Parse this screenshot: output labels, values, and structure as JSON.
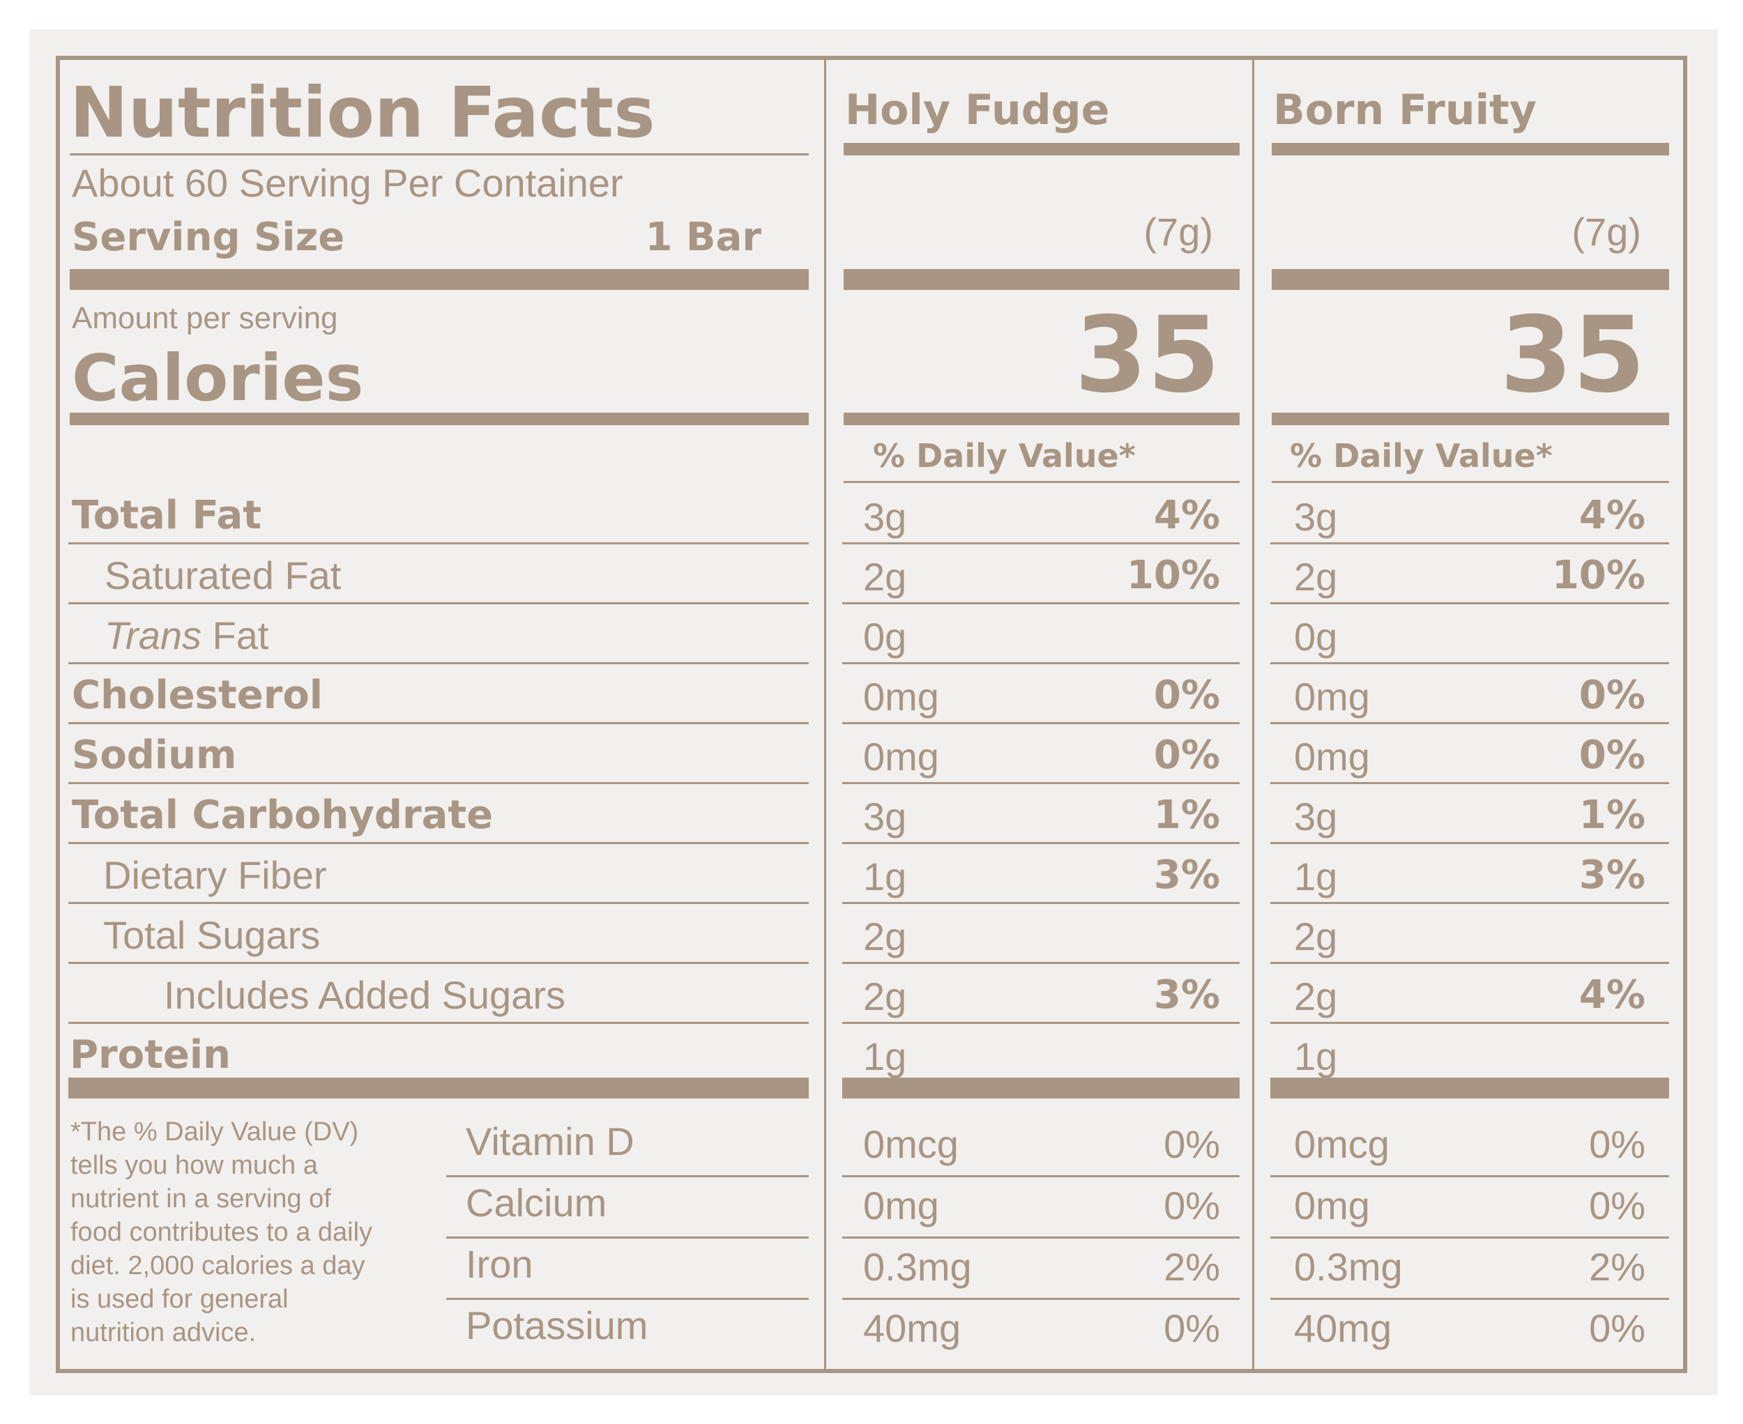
{
  "colors": {
    "ink": "#a89583",
    "background": "#f2f0ee"
  },
  "header": {
    "title": "Nutrition Facts",
    "servings": "About 60 Serving Per Container",
    "serving_size_label": "Serving Size",
    "serving_size_value": "1 Bar"
  },
  "calories": {
    "amount_label": "Amount per serving",
    "label": "Calories"
  },
  "daily_value_header": "% Daily Value*",
  "products": [
    {
      "name": "Holy Fudge",
      "serving_weight": "(7g)",
      "calories": "35"
    },
    {
      "name": "Born Fruity",
      "serving_weight": "(7g)",
      "calories": "35"
    }
  ],
  "nutrients": [
    {
      "name": "Total Fat",
      "values": [
        {
          "amount": "3g",
          "dv": "4%"
        },
        {
          "amount": "3g",
          "dv": "4%"
        }
      ]
    },
    {
      "name": "Saturated Fat",
      "values": [
        {
          "amount": "2g",
          "dv": "10%"
        },
        {
          "amount": "2g",
          "dv": "10%"
        }
      ]
    },
    {
      "name_italic": "Trans",
      "name": " Fat",
      "values": [
        {
          "amount": "0g",
          "dv": ""
        },
        {
          "amount": "0g",
          "dv": ""
        }
      ]
    },
    {
      "name": "Cholesterol",
      "values": [
        {
          "amount": "0mg",
          "dv": "0%"
        },
        {
          "amount": "0mg",
          "dv": "0%"
        }
      ]
    },
    {
      "name": "Sodium",
      "values": [
        {
          "amount": "0mg",
          "dv": "0%"
        },
        {
          "amount": "0mg",
          "dv": "0%"
        }
      ]
    },
    {
      "name": "Total Carbohydrate",
      "values": [
        {
          "amount": "3g",
          "dv": "1%"
        },
        {
          "amount": "3g",
          "dv": "1%"
        }
      ]
    },
    {
      "name": "Dietary Fiber",
      "values": [
        {
          "amount": "1g",
          "dv": "3%"
        },
        {
          "amount": "1g",
          "dv": "3%"
        }
      ]
    },
    {
      "name": "Total Sugars",
      "values": [
        {
          "amount": "2g",
          "dv": ""
        },
        {
          "amount": "2g",
          "dv": ""
        }
      ]
    },
    {
      "name": "Includes Added Sugars",
      "values": [
        {
          "amount": "2g",
          "dv": "3%"
        },
        {
          "amount": "2g",
          "dv": "4%"
        }
      ]
    },
    {
      "name": "Protein",
      "values": [
        {
          "amount": "1g",
          "dv": ""
        },
        {
          "amount": "1g",
          "dv": ""
        }
      ]
    }
  ],
  "vitamins": [
    {
      "name": "Vitamin D",
      "values": [
        {
          "amount": "0mcg",
          "dv": "0%"
        },
        {
          "amount": "0mcg",
          "dv": "0%"
        }
      ]
    },
    {
      "name": "Calcium",
      "values": [
        {
          "amount": "0mg",
          "dv": "0%"
        },
        {
          "amount": "0mg",
          "dv": "0%"
        }
      ]
    },
    {
      "name": "Iron",
      "values": [
        {
          "amount": "0.3mg",
          "dv": "2%"
        },
        {
          "amount": "0.3mg",
          "dv": "2%"
        }
      ]
    },
    {
      "name": "Potassium",
      "values": [
        {
          "amount": "40mg",
          "dv": "0%"
        },
        {
          "amount": "40mg",
          "dv": "0%"
        }
      ]
    }
  ],
  "footnote": [
    "*The % Daily Value (DV)",
    "tells you how much a",
    "nutrient in a serving of",
    "food contributes to a daily",
    "diet. 2,000 calories a day",
    "is used for general",
    "nutrition advice."
  ]
}
